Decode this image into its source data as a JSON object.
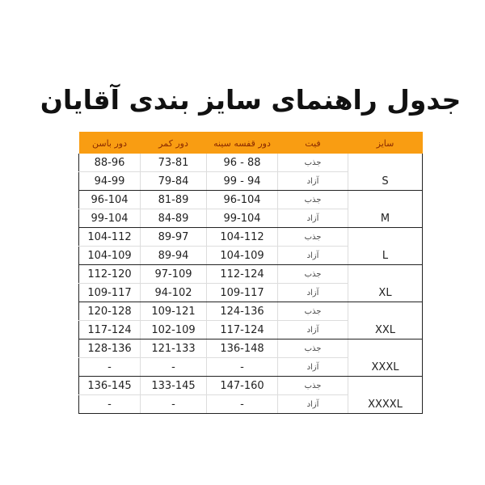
{
  "title": "جدول راهنمای سایز بندی آقایان",
  "colors": {
    "header_bg": "#f99d12",
    "header_text": "#8a2a00"
  },
  "headers": {
    "size": "سایز",
    "fit": "فیت",
    "chest": "دور قفسه سینه",
    "waist": "دور کمر",
    "hip": "دور باسن"
  },
  "sizes": [
    {
      "size": "S",
      "rows": [
        {
          "fit": "جذب",
          "chest": "88 - 96",
          "waist": "73-81",
          "hip": "88-96"
        },
        {
          "fit": "آزاد",
          "chest": "94 - 99",
          "waist": "79-84",
          "hip": "94-99"
        }
      ]
    },
    {
      "size": "M",
      "rows": [
        {
          "fit": "جذب",
          "chest": "96-104",
          "waist": "81-89",
          "hip": "96-104"
        },
        {
          "fit": "آزاد",
          "chest": "99-104",
          "waist": "84-89",
          "hip": "99-104"
        }
      ]
    },
    {
      "size": "L",
      "rows": [
        {
          "fit": "جذب",
          "chest": "104-112",
          "waist": "89-97",
          "hip": "104-112"
        },
        {
          "fit": "آزاد",
          "chest": "104-109",
          "waist": "89-94",
          "hip": "104-109"
        }
      ]
    },
    {
      "size": "XL",
      "rows": [
        {
          "fit": "جذب",
          "chest": "112-124",
          "waist": "97-109",
          "hip": "112-120"
        },
        {
          "fit": "آزاد",
          "chest": "109-117",
          "waist": "94-102",
          "hip": "109-117"
        }
      ]
    },
    {
      "size": "XXL",
      "rows": [
        {
          "fit": "جذب",
          "chest": "124-136",
          "waist": "109-121",
          "hip": "120-128"
        },
        {
          "fit": "آزاد",
          "chest": "117-124",
          "waist": "102-109",
          "hip": "117-124"
        }
      ]
    },
    {
      "size": "XXXL",
      "rows": [
        {
          "fit": "جذب",
          "chest": "136-148",
          "waist": "121-133",
          "hip": "128-136"
        },
        {
          "fit": "آزاد",
          "chest": "-",
          "waist": "-",
          "hip": "-"
        }
      ]
    },
    {
      "size": "XXXXL",
      "rows": [
        {
          "fit": "جذب",
          "chest": "147-160",
          "waist": "133-145",
          "hip": "136-145"
        },
        {
          "fit": "آزاد",
          "chest": "-",
          "waist": "-",
          "hip": "-"
        }
      ]
    }
  ]
}
